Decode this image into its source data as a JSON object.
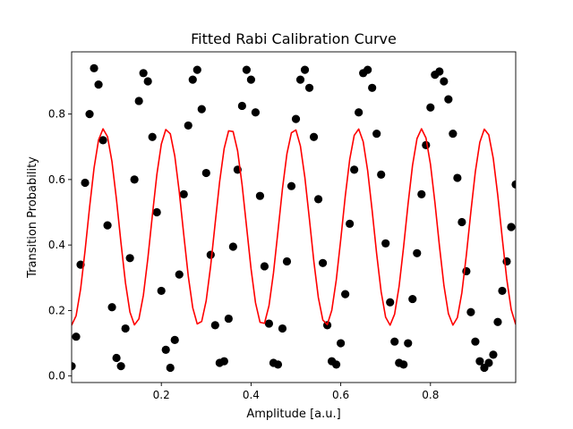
{
  "chart_data": {
    "type": "scatter",
    "title": "Fitted Rabi Calibration Curve",
    "xlabel": "Amplitude [a.u.]",
    "ylabel": "Transition Probability",
    "xlim": [
      0.0,
      0.99
    ],
    "ylim": [
      -0.02,
      0.99
    ],
    "xticks": [
      0.2,
      0.4,
      0.6,
      0.8
    ],
    "xtick_labels": [
      "0.2",
      "0.4",
      "0.6",
      "0.8"
    ],
    "yticks": [
      0.0,
      0.2,
      0.4,
      0.6,
      0.8
    ],
    "ytick_labels": [
      "0.0",
      "0.2",
      "0.4",
      "0.6",
      "0.8"
    ],
    "grid": false,
    "legend": "none",
    "series": [
      {
        "kind": "scatter",
        "color": "#000000",
        "x": [
          0.0,
          0.01,
          0.02,
          0.03,
          0.04,
          0.05,
          0.06,
          0.07,
          0.08,
          0.09,
          0.1,
          0.11,
          0.12,
          0.13,
          0.14,
          0.15,
          0.16,
          0.17,
          0.18,
          0.19,
          0.2,
          0.21,
          0.22,
          0.23,
          0.24,
          0.25,
          0.26,
          0.27,
          0.28,
          0.29,
          0.3,
          0.31,
          0.32,
          0.33,
          0.34,
          0.35,
          0.36,
          0.37,
          0.38,
          0.39,
          0.4,
          0.41,
          0.42,
          0.43,
          0.44,
          0.45,
          0.46,
          0.47,
          0.48,
          0.49,
          0.5,
          0.51,
          0.52,
          0.53,
          0.54,
          0.55,
          0.56,
          0.57,
          0.58,
          0.59,
          0.6,
          0.61,
          0.62,
          0.63,
          0.64,
          0.65,
          0.66,
          0.67,
          0.68,
          0.69,
          0.7,
          0.71,
          0.72,
          0.73,
          0.74,
          0.75,
          0.76,
          0.77,
          0.78,
          0.79,
          0.8,
          0.81,
          0.82,
          0.83,
          0.84,
          0.85,
          0.86,
          0.87,
          0.88,
          0.89,
          0.9,
          0.91,
          0.92,
          0.93,
          0.94,
          0.95,
          0.96,
          0.97,
          0.98,
          0.99
        ],
        "y": [
          0.03,
          0.12,
          0.34,
          0.59,
          0.8,
          0.94,
          0.89,
          0.72,
          0.46,
          0.21,
          0.055,
          0.03,
          0.145,
          0.36,
          0.6,
          0.84,
          0.925,
          0.9,
          0.73,
          0.5,
          0.26,
          0.08,
          0.025,
          0.11,
          0.31,
          0.555,
          0.765,
          0.905,
          0.935,
          0.815,
          0.62,
          0.37,
          0.155,
          0.04,
          0.045,
          0.175,
          0.395,
          0.63,
          0.825,
          0.935,
          0.905,
          0.805,
          0.55,
          0.335,
          0.16,
          0.04,
          0.035,
          0.145,
          0.35,
          0.58,
          0.785,
          0.905,
          0.935,
          0.88,
          0.73,
          0.54,
          0.345,
          0.155,
          0.045,
          0.035,
          0.1,
          0.25,
          0.465,
          0.63,
          0.805,
          0.925,
          0.935,
          0.88,
          0.74,
          0.615,
          0.405,
          0.225,
          0.105,
          0.04,
          0.035,
          0.1,
          0.235,
          0.375,
          0.555,
          0.705,
          0.82,
          0.92,
          0.93,
          0.9,
          0.845,
          0.74,
          0.605,
          0.47,
          0.32,
          0.195,
          0.105,
          0.045,
          0.025,
          0.04,
          0.065,
          0.165,
          0.26,
          0.35,
          0.455,
          0.585
        ]
      },
      {
        "kind": "line",
        "color": "#ff0000",
        "fit": {
          "amplitude": 0.3,
          "offset": 0.455,
          "frequency": 7.05,
          "phase": -1.571
        }
      }
    ]
  }
}
